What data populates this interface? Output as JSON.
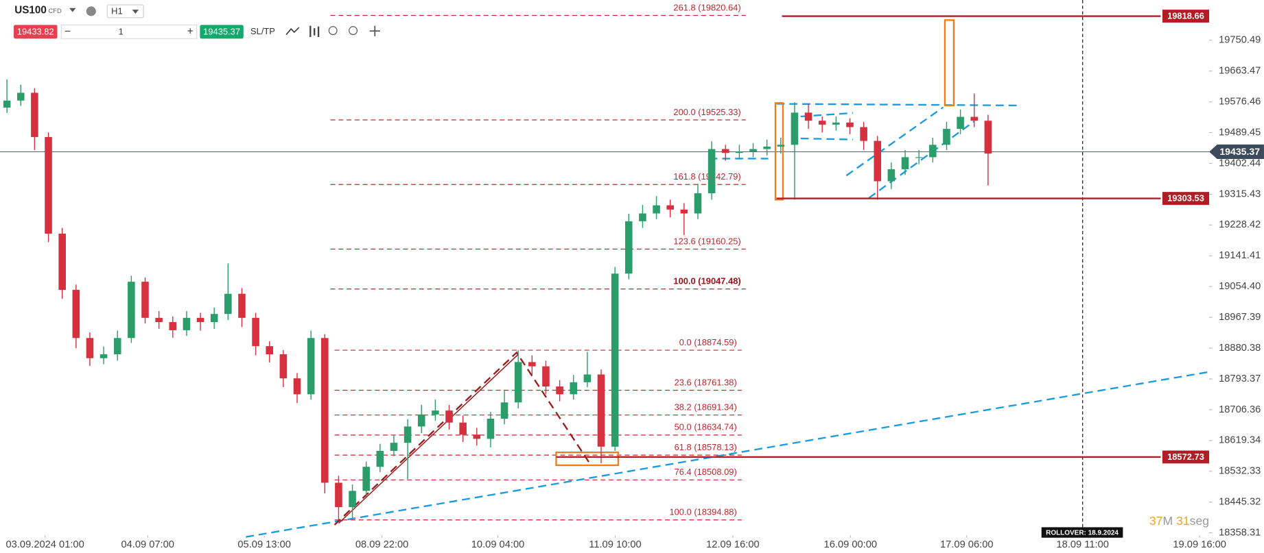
{
  "toolbar": {
    "symbol": "US100",
    "symbol_type": "CFD",
    "timeframe": "H1",
    "sell_price": "19433.82",
    "volume": "1",
    "buy_price": "19435.37",
    "sl_tp": "SL/TP"
  },
  "chart_data": {
    "type": "candlestick",
    "colors": {
      "up": "#2a9d6a",
      "down": "#d6303f",
      "fib": "#c0262d",
      "level": "#b01d24",
      "current": "#3b4b5c"
    },
    "xlim": [
      0,
      354.6
    ],
    "ylim": [
      18351.5,
      19864.2
    ],
    "yticks": [
      18358.31,
      18445.32,
      18532.33,
      18619.34,
      18706.36,
      18793.37,
      18880.38,
      18967.39,
      {
        "value": 19054.4,
        "label": "19054.40"
      },
      19141.41,
      19228.42,
      19315.43,
      19402.44,
      19489.45,
      19576.46,
      19663.47,
      19750.49
    ],
    "xticks": [
      {
        "value": 13.2,
        "label": "03.09.2024 01:00"
      },
      {
        "value": 43.3,
        "label": "04.09 07:00"
      },
      {
        "value": 77.5,
        "label": "05.09 13:00"
      },
      {
        "value": 112,
        "label": "08.09 22:00"
      },
      {
        "value": 146,
        "label": "10.09 04:00"
      },
      {
        "value": 180.4,
        "label": "11.09 10:00"
      },
      {
        "value": 214.9,
        "label": "12.09 16:00"
      },
      {
        "value": 249.4,
        "label": "16.09 00:00"
      },
      {
        "value": 283.5,
        "label": "17.09 06:00"
      },
      {
        "value": 317.5,
        "label": "18.09 11:00"
      },
      {
        "value": 351.8,
        "label": "19.09 16:00"
      }
    ],
    "candles": [
      [
        19560,
        19640,
        19545,
        19580
      ],
      [
        19580,
        19625,
        19565,
        19602
      ],
      [
        19602,
        19615,
        19440,
        19477
      ],
      [
        19477,
        19490,
        19180,
        19204
      ],
      [
        19204,
        19220,
        19020,
        19045
      ],
      [
        19045,
        19060,
        18880,
        18909
      ],
      [
        18909,
        18925,
        18830,
        18852
      ],
      [
        18852,
        18885,
        18835,
        18863
      ],
      [
        18863,
        18930,
        18845,
        18909
      ],
      [
        18909,
        19085,
        18895,
        19068
      ],
      [
        19068,
        19080,
        18950,
        18966
      ],
      [
        18966,
        18985,
        18935,
        18954
      ],
      [
        18954,
        18970,
        18910,
        18931
      ],
      [
        18931,
        18985,
        18915,
        18966
      ],
      [
        18966,
        18980,
        18930,
        18954
      ],
      [
        18954,
        18995,
        18935,
        18977
      ],
      [
        18977,
        19120,
        18960,
        19034
      ],
      [
        19034,
        19050,
        18940,
        18966
      ],
      [
        18966,
        18980,
        18860,
        18886
      ],
      [
        18886,
        18900,
        18840,
        18863
      ],
      [
        18863,
        18875,
        18770,
        18795
      ],
      [
        18795,
        18810,
        18725,
        18750
      ],
      [
        18750,
        18930,
        18735,
        18909
      ],
      [
        18909,
        18920,
        18470,
        18500
      ],
      [
        18500,
        18520,
        18395,
        18431
      ],
      [
        18431,
        18495,
        18400,
        18477
      ],
      [
        18477,
        18560,
        18460,
        18545
      ],
      [
        18545,
        18610,
        18530,
        18590
      ],
      [
        18590,
        18635,
        18575,
        18613
      ],
      [
        18613,
        18680,
        18510,
        18659
      ],
      [
        18659,
        18720,
        18640,
        18693
      ],
      [
        18693,
        18735,
        18675,
        18704
      ],
      [
        18704,
        18720,
        18650,
        18670
      ],
      [
        18670,
        18690,
        18615,
        18636
      ],
      [
        18636,
        18655,
        18605,
        18624
      ],
      [
        18624,
        18700,
        18600,
        18681
      ],
      [
        18681,
        18760,
        18665,
        18727
      ],
      [
        18727,
        18875,
        18710,
        18841
      ],
      [
        18841,
        18860,
        18805,
        18829
      ],
      [
        18829,
        18845,
        18750,
        18772
      ],
      [
        18772,
        18790,
        18730,
        18750
      ],
      [
        18750,
        18805,
        18735,
        18784
      ],
      [
        18784,
        18870,
        18770,
        18806
      ],
      [
        18806,
        18820,
        18555,
        18602
      ],
      [
        18602,
        19110,
        18590,
        19091
      ],
      [
        19091,
        19260,
        19075,
        19239
      ],
      [
        19239,
        19285,
        19220,
        19261
      ],
      [
        19261,
        19310,
        19245,
        19284
      ],
      [
        19284,
        19300,
        19250,
        19272
      ],
      [
        19272,
        19290,
        19200,
        19261
      ],
      [
        19261,
        19345,
        19245,
        19318
      ],
      [
        19318,
        19465,
        19300,
        19443
      ],
      [
        19443,
        19455,
        19410,
        19432
      ],
      [
        19432,
        19455,
        19415,
        19436
      ],
      [
        19436,
        19460,
        19420,
        19443
      ],
      [
        19443,
        19470,
        19425,
        19450
      ],
      [
        19450,
        19475,
        19430,
        19455
      ],
      [
        19455,
        19575,
        19300,
        19546
      ],
      [
        19546,
        19570,
        19500,
        19523
      ],
      [
        19523,
        19535,
        19490,
        19512
      ],
      [
        19512,
        19535,
        19495,
        19518
      ],
      [
        19518,
        19530,
        19485,
        19505
      ],
      [
        19505,
        19520,
        19440,
        19466
      ],
      [
        19466,
        19480,
        19300,
        19352
      ],
      [
        19352,
        19405,
        19330,
        19386
      ],
      [
        19386,
        19440,
        19370,
        19420
      ],
      [
        19420,
        19440,
        19400,
        19420
      ],
      [
        19420,
        19475,
        19405,
        19455
      ],
      [
        19455,
        19520,
        19440,
        19500
      ],
      [
        19500,
        19555,
        19485,
        19534
      ],
      [
        19534,
        19600,
        19505,
        19523
      ],
      [
        19523,
        19540,
        19340,
        19430
      ]
    ],
    "fib_sets": [
      {
        "x": [
          98.1,
          217.5
        ],
        "levels": [
          {
            "value": 18874.59,
            "label": "0.0 (18874.59)"
          },
          {
            "value": 18761.38,
            "label": "23.6 (18761.38)"
          },
          {
            "value": 18691.34,
            "label": "38.2 (18691.34)"
          },
          {
            "value": 18634.74,
            "label": "50.0 (18634.74)"
          },
          {
            "value": 18578.13,
            "label": "61.8 (18578.13)"
          },
          {
            "value": 18508.09,
            "label": "76.4 (18508.09)"
          },
          {
            "value": 18394.88,
            "label": "100.0 (18394.88)"
          }
        ]
      },
      {
        "x": [
          96.9,
          218.7
        ],
        "levels": [
          {
            "value": 19047.48,
            "label": "100.0 (19047.48)"
          },
          {
            "value": 19160.25,
            "label": "123.6 (19160.25)"
          },
          {
            "value": 19342.79,
            "label": "161.8 (19342.79)"
          },
          {
            "value": 19525.33,
            "label": "200.0 (19525.33)"
          },
          {
            "value": 19820.64,
            "label": "261.8 (19820.64)"
          }
        ]
      }
    ],
    "levels": [
      {
        "value": 19818.66,
        "x": [
          229.3,
          340.4
        ]
      },
      {
        "value": 19303.53,
        "x": [
          227.7,
          340.4
        ]
      },
      {
        "value": 18572.73,
        "x": [
          163.1,
          340.4
        ]
      }
    ],
    "current_price": 19435.37,
    "drawings": [
      {
        "kind": "line",
        "color": "#1a9be0",
        "dash": true,
        "points": [
          [
            72.1,
            18346.9
          ],
          [
            354.6,
            18813.3
          ]
        ]
      },
      {
        "kind": "line",
        "color": "#1a9be0",
        "dash": true,
        "points": [
          [
            227.7,
            19570.8
          ],
          [
            298.6,
            19566.2
          ]
        ]
      },
      {
        "kind": "line",
        "color": "#1a9be0",
        "dash": true,
        "points": [
          [
            208,
            19416
          ],
          [
            225.3,
            19416
          ]
        ]
      },
      {
        "kind": "line",
        "color": "#1a9be0",
        "dash": true,
        "points": [
          [
            234.8,
            19535
          ],
          [
            250.1,
            19545
          ]
        ]
      },
      {
        "kind": "line",
        "color": "#1a9be0",
        "dash": true,
        "points": [
          [
            234.8,
            19473
          ],
          [
            250.1,
            19470
          ]
        ]
      },
      {
        "kind": "line",
        "color": "#1a9be0",
        "dash": true,
        "points": [
          [
            248.2,
            19368
          ],
          [
            276.6,
            19561
          ]
        ]
      },
      {
        "kind": "line",
        "color": "#1a9be0",
        "dash": true,
        "points": [
          [
            254.8,
            19304.6
          ],
          [
            285.6,
            19520.7
          ]
        ]
      },
      {
        "kind": "line",
        "color": "#9b1c1c",
        "dash": true,
        "points": [
          [
            98.1,
            18381
          ],
          [
            151.5,
            18868
          ],
          [
            173.3,
            18549.4
          ]
        ]
      },
      {
        "kind": "line",
        "color": "#9b1c1c",
        "dash": false,
        "points": [
          [
            99.3,
            18385.6
          ],
          [
            152,
            18863
          ]
        ]
      },
      {
        "kind": "rect",
        "color": "#f07d1a",
        "dash": false,
        "points": [
          [
            163.1,
            18585.8
          ],
          [
            181.3,
            18549.4
          ]
        ]
      },
      {
        "kind": "rect",
        "color": "#f07d1a",
        "dash": false,
        "points": [
          [
            227.4,
            19573
          ],
          [
            229.6,
            19300
          ]
        ]
      },
      {
        "kind": "rect",
        "color": "#f07d1a",
        "dash": false,
        "points": [
          [
            277.1,
            19807.4
          ],
          [
            279.7,
            19566.2
          ]
        ]
      }
    ],
    "rollover": "ROLLOVER: 18.9.2024",
    "timer": {
      "minutes": "37",
      "minutes_unit": "M",
      "seconds": "31",
      "seconds_unit": "seg"
    }
  }
}
